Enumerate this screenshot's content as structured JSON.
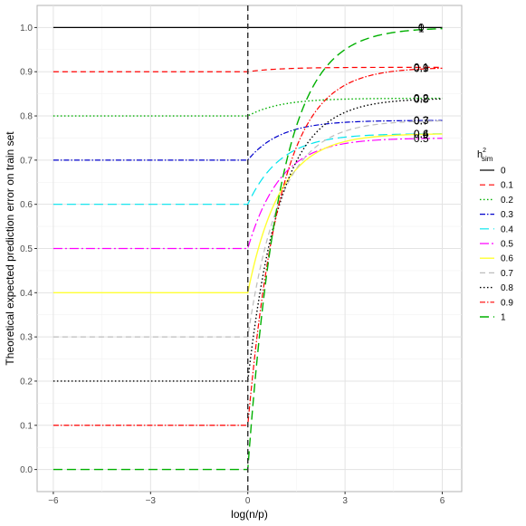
{
  "chart_data": {
    "type": "line",
    "xlabel": "log(n/p)",
    "ylabel": "Theoretical expected prediction error on train set",
    "xlim": [
      -6.5,
      6.6
    ],
    "ylim": [
      -0.05,
      1.05
    ],
    "x_ticks": [
      {
        "value": -6,
        "label": "−6"
      },
      {
        "value": -3,
        "label": "−3"
      },
      {
        "value": 0,
        "label": "0"
      },
      {
        "value": 3,
        "label": "3"
      },
      {
        "value": 6,
        "label": "6"
      }
    ],
    "y_ticks": [
      {
        "value": 0.0,
        "label": "0.0"
      },
      {
        "value": 0.1,
        "label": "0.1"
      },
      {
        "value": 0.2,
        "label": "0.2"
      },
      {
        "value": 0.3,
        "label": "0.3"
      },
      {
        "value": 0.4,
        "label": "0.4"
      },
      {
        "value": 0.5,
        "label": "0.5"
      },
      {
        "value": 0.6,
        "label": "0.6"
      },
      {
        "value": 0.7,
        "label": "0.7"
      },
      {
        "value": 0.8,
        "label": "0.8"
      },
      {
        "value": 0.9,
        "label": "0.9"
      },
      {
        "value": 1.0,
        "label": "1.0"
      }
    ],
    "vertical_reference_line": {
      "x": 0,
      "style": "dashed",
      "color": "#333333"
    },
    "grid": true,
    "legend": {
      "title": "h",
      "title_superscript": "2",
      "title_subscript": "sim",
      "position": "right"
    },
    "series": [
      {
        "name": "0",
        "h2": 0.0,
        "color": "#000000",
        "dash": "",
        "width": 1.2,
        "end_label": "0"
      },
      {
        "name": "0.1",
        "h2": 0.1,
        "color": "#ff0000",
        "dash": "6,4",
        "width": 1.2,
        "end_label": "0.1"
      },
      {
        "name": "0.2",
        "h2": 0.2,
        "color": "#00b000",
        "dash": "1.5,2.5",
        "width": 1.4,
        "end_label": "0.2"
      },
      {
        "name": "0.3",
        "h2": 0.3,
        "color": "#0000cc",
        "dash": "6,2,1.5,2",
        "width": 1.2,
        "end_label": "0.3"
      },
      {
        "name": "0.4",
        "h2": 0.4,
        "color": "#00e5ee",
        "dash": "10,5",
        "width": 1.2,
        "end_label": "0.4"
      },
      {
        "name": "0.5",
        "h2": 0.5,
        "color": "#ff00ff",
        "dash": "10,3,2,3",
        "width": 1.2,
        "end_label": "0.5"
      },
      {
        "name": "0.6",
        "h2": 0.6,
        "color": "#ffff33",
        "dash": "",
        "width": 1.4,
        "end_label": "0.6"
      },
      {
        "name": "0.7",
        "h2": 0.7,
        "color": "#bdbdbd",
        "dash": "6,4",
        "width": 1.2,
        "end_label": "0.7"
      },
      {
        "name": "0.8",
        "h2": 0.8,
        "color": "#000000",
        "dash": "1.5,2.5",
        "width": 1.4,
        "end_label": "0.8"
      },
      {
        "name": "0.9",
        "h2": 0.9,
        "color": "#ff0000",
        "dash": "6,2,1.5,2",
        "width": 1.2,
        "end_label": "0.9"
      },
      {
        "name": "1",
        "h2": 1.0,
        "color": "#00b000",
        "dash": "10,5",
        "width": 1.4,
        "end_label": "1"
      }
    ]
  }
}
